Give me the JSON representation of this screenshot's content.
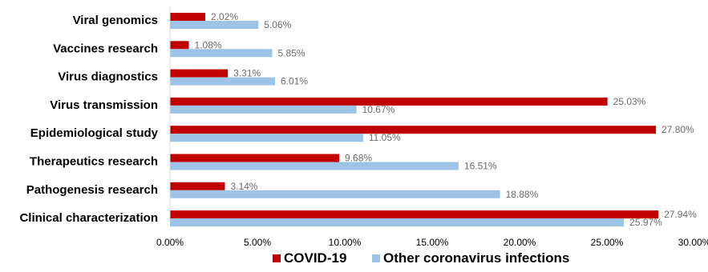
{
  "chart_data": {
    "type": "bar",
    "orientation": "horizontal",
    "categories": [
      "Viral genomics",
      "Vaccines research",
      "Virus diagnostics",
      "Virus transmission",
      "Epidemiological study",
      "Therapeutics research",
      "Pathogenesis research",
      "Clinical characterization"
    ],
    "series": [
      {
        "name": "COVID-19",
        "color": "#c00000",
        "values": [
          2.02,
          1.08,
          3.31,
          25.03,
          27.8,
          9.68,
          3.14,
          27.94
        ],
        "labels": [
          "2.02%",
          "1.08%",
          "3.31%",
          "25.03%",
          "27.80%",
          "9.68%",
          "3.14%",
          "27.94%"
        ]
      },
      {
        "name": "Other coronavirus infections",
        "color": "#9dc3e6",
        "values": [
          5.06,
          5.85,
          6.01,
          10.67,
          11.05,
          16.51,
          18.88,
          25.97
        ],
        "labels": [
          "5.06%",
          "5.85%",
          "6.01%",
          "10.67%",
          "11.05%",
          "16.51%",
          "18.88%",
          "25.97%"
        ]
      }
    ],
    "xlim": [
      0,
      30
    ],
    "xticks": [
      0,
      5,
      10,
      15,
      20,
      25,
      30
    ],
    "xtick_labels": [
      "0.00%",
      "5.00%",
      "10.00%",
      "15.00%",
      "20.00%",
      "25.00%",
      "30.00%"
    ],
    "grid": false,
    "legend_position": "bottom"
  }
}
